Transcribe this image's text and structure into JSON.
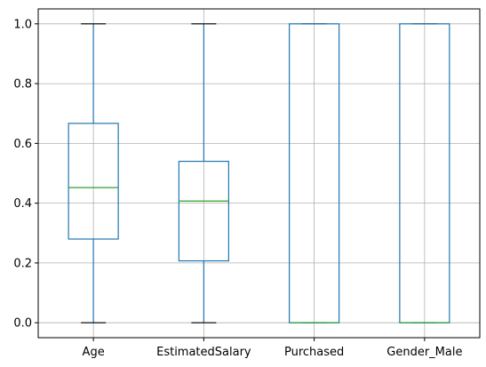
{
  "chart_data": {
    "type": "box",
    "title": "",
    "xlabel": "",
    "ylabel": "",
    "categories": [
      "Age",
      "EstimatedSalary",
      "Purchased",
      "Gender_Male"
    ],
    "boxes": [
      {
        "category": "Age",
        "whisker_low": 0.0,
        "q1": 0.28,
        "median": 0.452,
        "q3": 0.667,
        "whisker_high": 1.0
      },
      {
        "category": "EstimatedSalary",
        "whisker_low": 0.0,
        "q1": 0.207,
        "median": 0.407,
        "q3": 0.54,
        "whisker_high": 1.0
      },
      {
        "category": "Purchased",
        "whisker_low": 0.0,
        "q1": 0.0,
        "median": 0.0,
        "q3": 1.0,
        "whisker_high": 1.0
      },
      {
        "category": "Gender_Male",
        "whisker_low": 0.0,
        "q1": 0.0,
        "median": 0.0,
        "q3": 1.0,
        "whisker_high": 1.0
      }
    ],
    "yticks": [
      "0.0",
      "0.2",
      "0.4",
      "0.6",
      "0.8",
      "1.0"
    ],
    "ytick_values": [
      0.0,
      0.2,
      0.4,
      0.6,
      0.8,
      1.0
    ],
    "ylim": [
      -0.05,
      1.05
    ],
    "grid": true,
    "colors": {
      "box": "#1f77b4",
      "median": "#2ca02c",
      "whisker_cap": "#000000",
      "grid": "#b0b0b0",
      "axes": "#000000"
    }
  }
}
